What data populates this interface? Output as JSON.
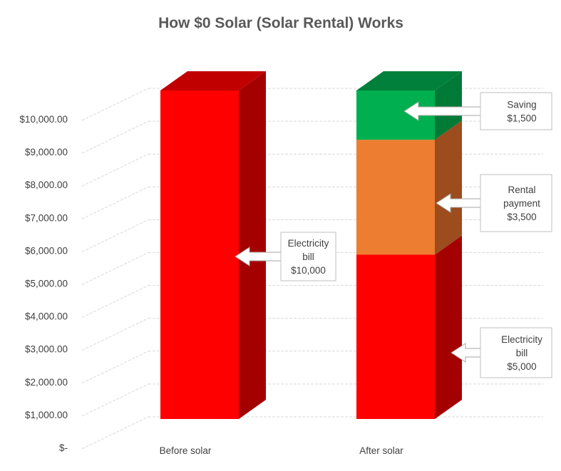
{
  "chart_data": {
    "type": "bar",
    "stacked": true,
    "three_d": true,
    "title": "How $0 Solar (Solar Rental) Works",
    "categories": [
      "Before solar",
      "After solar"
    ],
    "series": [
      {
        "values": [
          10000,
          5000
        ],
        "color": "#ff0000",
        "side_color": "#a50000",
        "top_color": "#c00000"
      },
      {
        "values": [
          0,
          3500
        ],
        "color": "#ed7d31",
        "side_color": "#9c4c1d",
        "top_color": "#c0601e"
      },
      {
        "values": [
          0,
          1500
        ],
        "color": "#00b050",
        "side_color": "#007a36",
        "top_color": "#00803a"
      }
    ],
    "ylim": [
      0,
      10000
    ],
    "yticks": [
      0,
      1000,
      2000,
      3000,
      4000,
      5000,
      6000,
      7000,
      8000,
      9000,
      10000
    ],
    "ytick_labels": [
      "$-",
      "$1,000.00",
      "$2,000.00",
      "$3,000.00",
      "$4,000.00",
      "$5,000.00",
      "$6,000.00",
      "$7,000.00",
      "$8,000.00",
      "$9,000.00",
      "$10,000.00"
    ],
    "grid": true,
    "annotations": [
      {
        "category": "Before solar",
        "value": 5000,
        "lines": [
          "Electricity",
          "bill",
          "$10,000"
        ]
      },
      {
        "category": "After solar",
        "value": 9750,
        "lines": [
          "Saving",
          "$1,500"
        ]
      },
      {
        "category": "After solar",
        "value": 6750,
        "lines": [
          "Rental",
          "payment",
          "$3,500"
        ]
      },
      {
        "category": "After solar",
        "value": 2500,
        "lines": [
          "Electricity",
          "bill",
          "$5,000"
        ]
      }
    ]
  }
}
